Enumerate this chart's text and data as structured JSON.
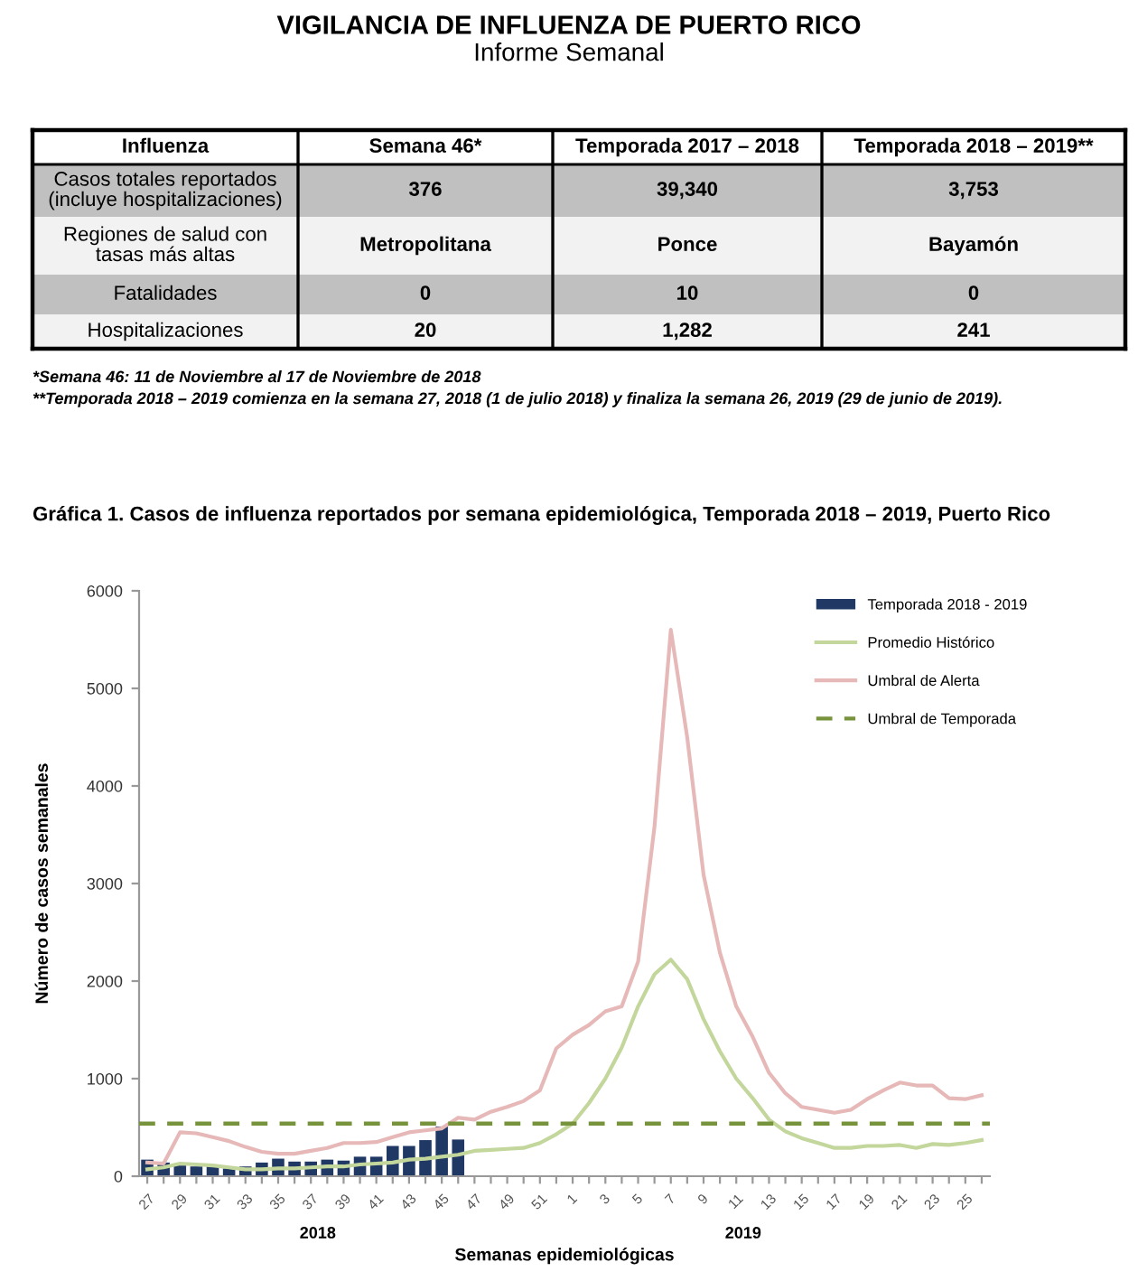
{
  "chart_data": [
    {
      "type": "other",
      "title": "VIGILANCIA DE INFLUENZA DE PUERTO RICO",
      "subtitle": "Informe Semanal",
      "categories": [
        "Influenza",
        "Semana 46*",
        "Temporada 2017 – 2018",
        "Temporada 2018 – 2019**"
      ],
      "y_categories": [
        "Casos totales reportados\n(incluye hospitalizaciones)",
        "Regiones de salud con\ntasas más altas",
        "Fatalidades",
        "Hospitalizaciones"
      ],
      "cell_labels": [
        [
          "376",
          "39,340",
          "3,753"
        ],
        [
          "Metropolitana",
          "Ponce",
          "Bayamón"
        ],
        [
          "0",
          "10",
          "0"
        ],
        [
          "20",
          "1,282",
          "241"
        ]
      ],
      "colors": [
        "#ffffff",
        "#c0c0c0",
        "#f2f2f2",
        "#c0c0c0",
        "#f2f2f2"
      ],
      "annotations": [
        "*Semana 46: 11 de Noviembre al 17 de Noviembre de 2018",
        "**Temporada 2018 – 2019 comienza en la semana 27, 2018 (1 de julio 2018) y finaliza la semana 26, 2019 (29 de junio de 2019)."
      ]
    },
    {
      "type": "bar",
      "title": "Gráfica 1. Casos de influenza reportados por semana epidemiológica, Temporada 2018 – 2019, Puerto Rico",
      "xlabel": "Semanas epidemiológicas",
      "ylabel": "Número de casos semanales",
      "categories": [
        "27",
        null,
        "29",
        null,
        "31",
        null,
        "33",
        null,
        "35",
        null,
        "37",
        null,
        "39",
        null,
        "41",
        null,
        "43",
        null,
        "45",
        null,
        "47",
        null,
        "49",
        null,
        "51",
        null,
        "1",
        null,
        "3",
        null,
        "5",
        null,
        "7",
        null,
        "9",
        null,
        "11",
        null,
        "13",
        null,
        "15",
        null,
        "17",
        null,
        "19",
        null,
        "21",
        null,
        "23",
        null,
        "25",
        null
      ],
      "series": [
        {
          "name": "Temporada 2018 - 2019",
          "type": "bar",
          "color": "#1f3864",
          "values": [
            170,
            140,
            110,
            100,
            100,
            80,
            100,
            140,
            180,
            150,
            150,
            170,
            160,
            200,
            200,
            310,
            310,
            370,
            510,
            376,
            null,
            null,
            null,
            null,
            null,
            null,
            null,
            null,
            null,
            null,
            null,
            null,
            null,
            null,
            null,
            null,
            null,
            null,
            null,
            null,
            null,
            null,
            null,
            null,
            null,
            null,
            null,
            null,
            null,
            null,
            null,
            null
          ]
        },
        {
          "name": "Promedio Histórico",
          "type": "line",
          "color": "#c3d69b",
          "values": [
            70,
            90,
            130,
            120,
            110,
            90,
            70,
            70,
            80,
            80,
            90,
            100,
            100,
            120,
            130,
            140,
            170,
            180,
            200,
            220,
            260,
            270,
            280,
            290,
            340,
            430,
            540,
            750,
            1000,
            1320,
            1740,
            2070,
            2220,
            2020,
            1610,
            1280,
            1000,
            800,
            580,
            460,
            390,
            340,
            290,
            290,
            310,
            310,
            320,
            290,
            330,
            320,
            340,
            370
          ]
        },
        {
          "name": "Umbral de Alerta",
          "type": "line",
          "color": "#e6b9b8",
          "values": [
            140,
            130,
            450,
            440,
            400,
            360,
            300,
            250,
            230,
            230,
            260,
            290,
            340,
            340,
            350,
            400,
            450,
            470,
            490,
            600,
            580,
            660,
            710,
            770,
            880,
            1310,
            1450,
            1550,
            1690,
            1740,
            2200,
            3580,
            5600,
            4500,
            3090,
            2290,
            1740,
            1430,
            1060,
            850,
            710,
            680,
            650,
            680,
            790,
            880,
            960,
            930,
            930,
            800,
            790,
            830
          ]
        }
      ],
      "ref_lines": [
        {
          "axis": "y",
          "value": 540,
          "label": "Umbral de Temporada",
          "color": "#77933c",
          "line_style": "dashed"
        }
      ],
      "ylim": [
        0,
        6000
      ],
      "yticks": [
        0,
        1000,
        2000,
        3000,
        4000,
        5000,
        6000
      ],
      "grid": false,
      "legend": "top right",
      "annotations": [
        "2018",
        "2019"
      ]
    }
  ]
}
